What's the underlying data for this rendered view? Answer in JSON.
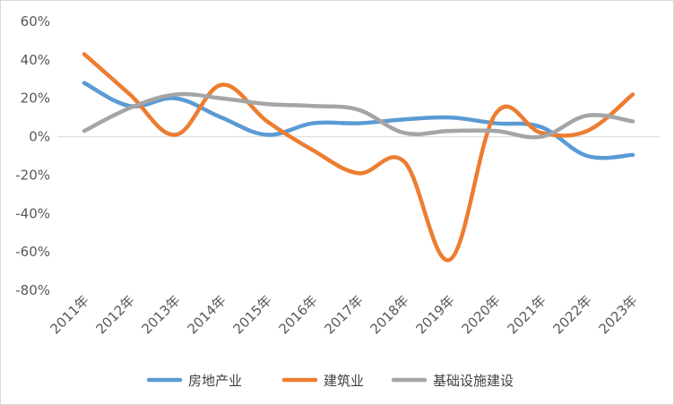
{
  "chart_data": {
    "type": "line",
    "title": "",
    "xlabel": "",
    "ylabel": "",
    "categories": [
      "2011年",
      "2012年",
      "2013年",
      "2014年",
      "2015年",
      "2016年",
      "2017年",
      "2018年",
      "2019年",
      "2020年",
      "2021年",
      "2022年",
      "2023年"
    ],
    "ylim": [
      -80,
      60
    ],
    "yticks": [
      60,
      40,
      20,
      0,
      -20,
      -40,
      -60,
      -80
    ],
    "ytick_labels": [
      "60%",
      "40%",
      "20%",
      "0%",
      "-20%",
      "-40%",
      "-60%",
      "-80%"
    ],
    "grid": false,
    "legend_position": "bottom",
    "smooth": true,
    "series": [
      {
        "name": "房地产业",
        "color": "#5b9bd5",
        "values": [
          28,
          16,
          20,
          10,
          1,
          7,
          7,
          9,
          10,
          7,
          5,
          -10,
          -9.5
        ]
      },
      {
        "name": "建筑业",
        "color": "#ed7d31",
        "values": [
          43,
          22,
          1,
          27,
          8,
          -7,
          -19,
          -13,
          -64,
          12,
          2,
          3,
          22
        ]
      },
      {
        "name": "基础设施建设",
        "color": "#a5a5a5",
        "values": [
          3,
          15,
          22,
          20,
          17,
          16,
          14,
          2,
          3,
          3,
          0,
          11,
          8
        ]
      }
    ]
  }
}
